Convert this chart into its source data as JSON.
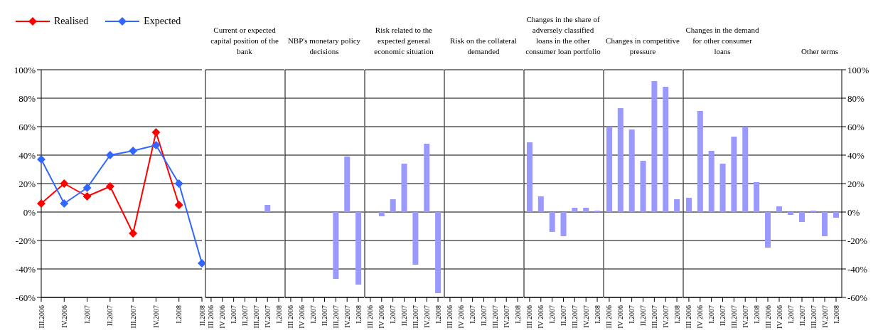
{
  "chart_data": [
    {
      "type": "line",
      "categories": [
        "III.2006",
        "IV.2006",
        "I.2007",
        "II.2007",
        "III.2007",
        "IV.2007",
        "I.2008",
        "II.2008"
      ],
      "series": [
        {
          "name": "Realised",
          "color": "#ff0000",
          "values": [
            6,
            20,
            11,
            18,
            -15,
            56,
            5,
            null
          ]
        },
        {
          "name": "Expected",
          "color": "#3366ff",
          "values": [
            37,
            6,
            17,
            40,
            43,
            47,
            20,
            -36
          ]
        }
      ],
      "ylim": [
        -60,
        100
      ],
      "yticks": [
        {
          "value": -60,
          "label": "-60%"
        },
        {
          "value": -40,
          "label": "-40%"
        },
        {
          "value": -20,
          "label": "-20%"
        },
        {
          "value": 0,
          "label": "0%"
        },
        {
          "value": 20,
          "label": "20%"
        },
        {
          "value": 40,
          "label": "40%"
        },
        {
          "value": 60,
          "label": "60%"
        },
        {
          "value": 80,
          "label": "80%"
        },
        {
          "value": 100,
          "label": "100%"
        }
      ],
      "grid": "y",
      "legend": "top left",
      "marker": "diamond",
      "line_style": "solid"
    },
    {
      "type": "bar",
      "title": "Current or expected capital position of the bank",
      "categories": [
        "III 2006",
        "IV 2006",
        "I.2007",
        "II.2007",
        "III.2007",
        "IV.2007",
        "I.2008"
      ],
      "values": [
        0,
        0,
        0,
        0,
        0,
        5,
        0
      ],
      "color": "#9999ff",
      "ylim": [
        -60,
        100
      ],
      "yticks": [
        -60,
        -40,
        -20,
        0,
        20,
        40,
        60,
        80,
        100
      ],
      "grid": "y",
      "tick_labels": "x"
    },
    {
      "type": "bar",
      "title": "NBP's monetary policy decisions",
      "categories": [
        "III 2006",
        "IV 2006",
        "I.2007",
        "II.2007",
        "III.2007",
        "IV.2007",
        "I.2008"
      ],
      "values": [
        0,
        0,
        0,
        0,
        -47,
        39,
        -51
      ],
      "color": "#9999ff",
      "ylim": [
        -60,
        100
      ],
      "yticks": [
        -60,
        -40,
        -20,
        0,
        20,
        40,
        60,
        80,
        100
      ],
      "grid": "y",
      "tick_labels": "x"
    },
    {
      "type": "bar",
      "title": "Risk related to the expected general economic situation",
      "categories": [
        "III 2006",
        "IV 2006",
        "I.2007",
        "II.2007",
        "III.2007",
        "IV.2007",
        "I.2008"
      ],
      "values": [
        0,
        -3,
        9,
        34,
        -37,
        48,
        -57
      ],
      "color": "#9999ff",
      "ylim": [
        -60,
        100
      ],
      "yticks": [
        -60,
        -40,
        -20,
        0,
        20,
        40,
        60,
        80,
        100
      ],
      "grid": "y",
      "tick_labels": "x"
    },
    {
      "type": "bar",
      "title": "Risk on the collateral demanded",
      "categories": [
        "III 2006",
        "IV 2006",
        "I.2007",
        "II.2007",
        "III.2007",
        "IV.2007",
        "I.2008"
      ],
      "values": [
        0,
        0,
        0,
        0,
        0,
        0,
        0
      ],
      "color": "#9999ff",
      "ylim": [
        -60,
        100
      ],
      "yticks": [
        -60,
        -40,
        -20,
        0,
        20,
        40,
        60,
        80,
        100
      ],
      "grid": "y",
      "tick_labels": "x"
    },
    {
      "type": "bar",
      "title": "Changes in the share of adversely classified loans in the other consumer loan portfolio",
      "categories": [
        "III 2006",
        "IV 2006",
        "I.2007",
        "II.2007",
        "III.2007",
        "IV.2007",
        "I.2008"
      ],
      "values": [
        49,
        11,
        -14,
        -17,
        3,
        3,
        1
      ],
      "color": "#9999ff",
      "ylim": [
        -60,
        100
      ],
      "yticks": [
        -60,
        -40,
        -20,
        0,
        20,
        40,
        60,
        80,
        100
      ],
      "grid": "y",
      "tick_labels": "x"
    },
    {
      "type": "bar",
      "title": "Changes in competitive pressure",
      "categories": [
        "III 2006",
        "IV 2006",
        "I.2007",
        "II.2007",
        "III.2007",
        "IV.2007",
        "I.2008"
      ],
      "values": [
        60,
        73,
        58,
        36,
        92,
        88,
        9
      ],
      "color": "#9999ff",
      "ylim": [
        -60,
        100
      ],
      "yticks": [
        -60,
        -40,
        -20,
        0,
        20,
        40,
        60,
        80,
        100
      ],
      "grid": "y",
      "tick_labels": "x"
    },
    {
      "type": "bar",
      "title": "Changes in the demand for other consumer loans",
      "categories": [
        "III 2006",
        "IV 2006",
        "I.2007",
        "II.2007",
        "III.2007",
        "IV.2007",
        "I.2008"
      ],
      "values": [
        10,
        71,
        43,
        34,
        53,
        60,
        21
      ],
      "color": "#9999ff",
      "ylim": [
        -60,
        100
      ],
      "yticks": [
        -60,
        -40,
        -20,
        0,
        20,
        40,
        60,
        80,
        100
      ],
      "grid": "y",
      "tick_labels": "x"
    },
    {
      "type": "bar",
      "title": "Other terms",
      "categories": [
        "III 2006",
        "IV 2006",
        "I.2007",
        "II.2007",
        "III.2007",
        "IV.2007",
        "I.2008"
      ],
      "values": [
        -25,
        4,
        -2,
        -7,
        1,
        -17,
        -4
      ],
      "color": "#9999ff",
      "ylim": [
        -60,
        100
      ],
      "yticks": [
        {
          "value": -60,
          "label": "-60%"
        },
        {
          "value": -40,
          "label": "-40%"
        },
        {
          "value": -20,
          "label": "-20%"
        },
        {
          "value": 0,
          "label": "0%"
        },
        {
          "value": 20,
          "label": "20%"
        },
        {
          "value": 40,
          "label": "40%"
        },
        {
          "value": 60,
          "label": "60%"
        },
        {
          "value": 80,
          "label": "80%"
        },
        {
          "value": 100,
          "label": "100%"
        }
      ],
      "grid": "y"
    }
  ]
}
